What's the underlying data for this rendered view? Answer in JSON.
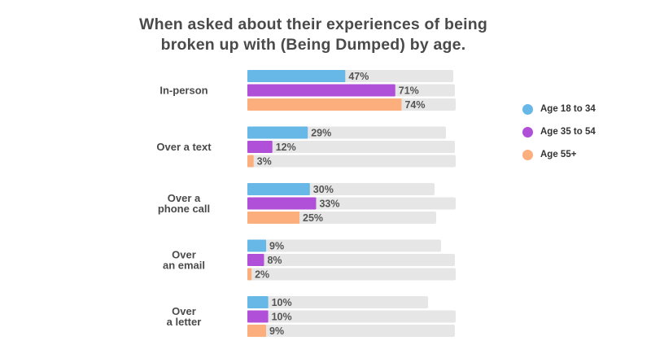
{
  "title_line1": "When asked about their experiences of being",
  "title_line2": "broken up with (Being Dumped) by age.",
  "colors": {
    "age_18_34": "#67b8e6",
    "age_35_54": "#b04fd8",
    "age_55_plus": "#fcae7d",
    "track": "#e6e6e6"
  },
  "chart_data": {
    "type": "bar",
    "orientation": "horizontal",
    "categories": [
      [
        "In-person"
      ],
      [
        "Over a text"
      ],
      [
        "Over a",
        "phone call"
      ],
      [
        "Over",
        "an email"
      ],
      [
        "Over",
        "a letter"
      ]
    ],
    "series": [
      {
        "name": "Age 18 to 34",
        "values": [
          47,
          29,
          30,
          9,
          10
        ]
      },
      {
        "name": "Age 35 to 54",
        "values": [
          71,
          12,
          33,
          8,
          10
        ]
      },
      {
        "name": "Age 55+",
        "values": [
          74,
          3,
          25,
          2,
          9
        ]
      }
    ],
    "value_suffix": "%",
    "xlim": [
      0,
      100
    ],
    "legend_position": "right",
    "grid": false
  }
}
